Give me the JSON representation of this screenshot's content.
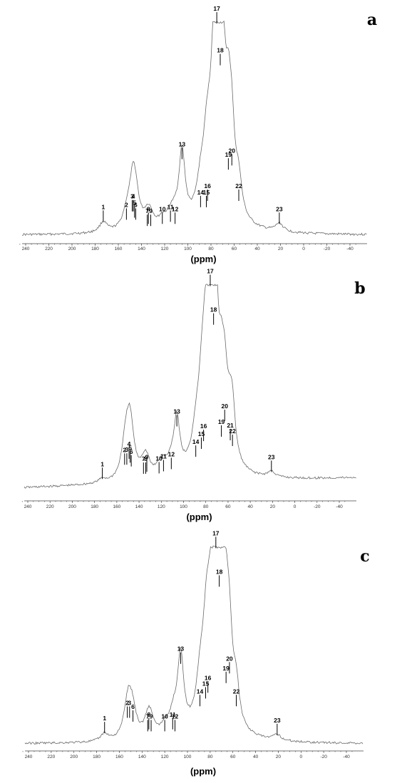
{
  "chart_data": [
    {
      "type": "line",
      "panel_label": "a",
      "xlabel": "(ppm)",
      "xlim": [
        250,
        -50
      ],
      "x_ticks": [
        240,
        220,
        200,
        180,
        160,
        140,
        120,
        100,
        80,
        60,
        40,
        20,
        0,
        -20,
        -40
      ],
      "peaks": [
        {
          "label": "1",
          "ppm": 173,
          "height": 0.05
        },
        {
          "label": "2",
          "ppm": 153,
          "height": 0.06
        },
        {
          "label": "3",
          "ppm": 148,
          "height": 0.1
        },
        {
          "label": "4",
          "ppm": 147,
          "height": 0.1
        },
        {
          "label": "5",
          "ppm": 146,
          "height": 0.07
        },
        {
          "label": "6",
          "ppm": 145,
          "height": 0.06
        },
        {
          "label": "7",
          "ppm": 135,
          "height": 0.03
        },
        {
          "label": "8",
          "ppm": 134,
          "height": 0.04
        },
        {
          "label": "9",
          "ppm": 132,
          "height": 0.03
        },
        {
          "label": "10",
          "ppm": 122,
          "height": 0.04
        },
        {
          "label": "11",
          "ppm": 115,
          "height": 0.05
        },
        {
          "label": "12",
          "ppm": 111,
          "height": 0.04
        },
        {
          "label": "13",
          "ppm": 105,
          "height": 0.35
        },
        {
          "label": "14",
          "ppm": 89,
          "height": 0.12
        },
        {
          "label": "15",
          "ppm": 84,
          "height": 0.12
        },
        {
          "label": "16",
          "ppm": 83,
          "height": 0.15
        },
        {
          "label": "17",
          "ppm": 75,
          "height": 1.0
        },
        {
          "label": "18",
          "ppm": 72,
          "height": 0.8
        },
        {
          "label": "19",
          "ppm": 65,
          "height": 0.3
        },
        {
          "label": "20",
          "ppm": 62,
          "height": 0.32
        },
        {
          "label": "22",
          "ppm": 56,
          "height": 0.15
        },
        {
          "label": "23",
          "ppm": 21,
          "height": 0.04
        }
      ]
    },
    {
      "type": "line",
      "panel_label": "b",
      "xlabel": "(ppm)",
      "xlim": [
        250,
        -50
      ],
      "x_ticks": [
        240,
        220,
        200,
        180,
        160,
        140,
        120,
        100,
        80,
        60,
        40,
        20,
        0,
        -20,
        -40
      ],
      "peaks": [
        {
          "label": "1",
          "ppm": 173,
          "height": 0.02
        },
        {
          "label": "2",
          "ppm": 153,
          "height": 0.09
        },
        {
          "label": "3",
          "ppm": 151,
          "height": 0.09
        },
        {
          "label": "4",
          "ppm": 149,
          "height": 0.12
        },
        {
          "label": "5",
          "ppm": 148,
          "height": 0.1
        },
        {
          "label": "6",
          "ppm": 147,
          "height": 0.08
        },
        {
          "label": "7",
          "ppm": 136,
          "height": 0.04
        },
        {
          "label": "8",
          "ppm": 134,
          "height": 0.04
        },
        {
          "label": "9",
          "ppm": 133,
          "height": 0.05
        },
        {
          "label": "10",
          "ppm": 122,
          "height": 0.04
        },
        {
          "label": "11",
          "ppm": 118,
          "height": 0.05
        },
        {
          "label": "12",
          "ppm": 111,
          "height": 0.06
        },
        {
          "label": "13",
          "ppm": 106,
          "height": 0.28
        },
        {
          "label": "14",
          "ppm": 89,
          "height": 0.12
        },
        {
          "label": "15",
          "ppm": 84,
          "height": 0.16
        },
        {
          "label": "16",
          "ppm": 82,
          "height": 0.2
        },
        {
          "label": "17",
          "ppm": 76,
          "height": 1.0
        },
        {
          "label": "18",
          "ppm": 73,
          "height": 0.8
        },
        {
          "label": "19",
          "ppm": 66,
          "height": 0.22
        },
        {
          "label": "20",
          "ppm": 63,
          "height": 0.3
        },
        {
          "label": "21",
          "ppm": 58,
          "height": 0.2
        },
        {
          "label": "22",
          "ppm": 56,
          "height": 0.17
        },
        {
          "label": "23",
          "ppm": 21,
          "height": 0.03
        }
      ]
    },
    {
      "type": "line",
      "panel_label": "c",
      "xlabel": "(ppm)",
      "xlim": [
        250,
        -50
      ],
      "x_ticks": [
        240,
        220,
        200,
        180,
        160,
        140,
        120,
        100,
        80,
        60,
        40,
        20,
        0,
        -20,
        -40
      ],
      "peaks": [
        {
          "label": "1",
          "ppm": 173,
          "height": 0.04
        },
        {
          "label": "2",
          "ppm": 153,
          "height": 0.12
        },
        {
          "label": "3",
          "ppm": 151,
          "height": 0.12
        },
        {
          "label": "6",
          "ppm": 148,
          "height": 0.1
        },
        {
          "label": "7",
          "ppm": 135,
          "height": 0.05
        },
        {
          "label": "8",
          "ppm": 134,
          "height": 0.06
        },
        {
          "label": "9",
          "ppm": 132,
          "height": 0.05
        },
        {
          "label": "10",
          "ppm": 120,
          "height": 0.05
        },
        {
          "label": "11",
          "ppm": 113,
          "height": 0.06
        },
        {
          "label": "12",
          "ppm": 111,
          "height": 0.05
        },
        {
          "label": "13",
          "ppm": 106,
          "height": 0.4
        },
        {
          "label": "14",
          "ppm": 89,
          "height": 0.18
        },
        {
          "label": "15",
          "ppm": 84,
          "height": 0.22
        },
        {
          "label": "16",
          "ppm": 82,
          "height": 0.25
        },
        {
          "label": "17",
          "ppm": 75,
          "height": 1.0
        },
        {
          "label": "18",
          "ppm": 72,
          "height": 0.8
        },
        {
          "label": "19",
          "ppm": 66,
          "height": 0.3
        },
        {
          "label": "20",
          "ppm": 63,
          "height": 0.35
        },
        {
          "label": "22",
          "ppm": 57,
          "height": 0.18
        },
        {
          "label": "23",
          "ppm": 21,
          "height": 0.03
        }
      ]
    }
  ]
}
